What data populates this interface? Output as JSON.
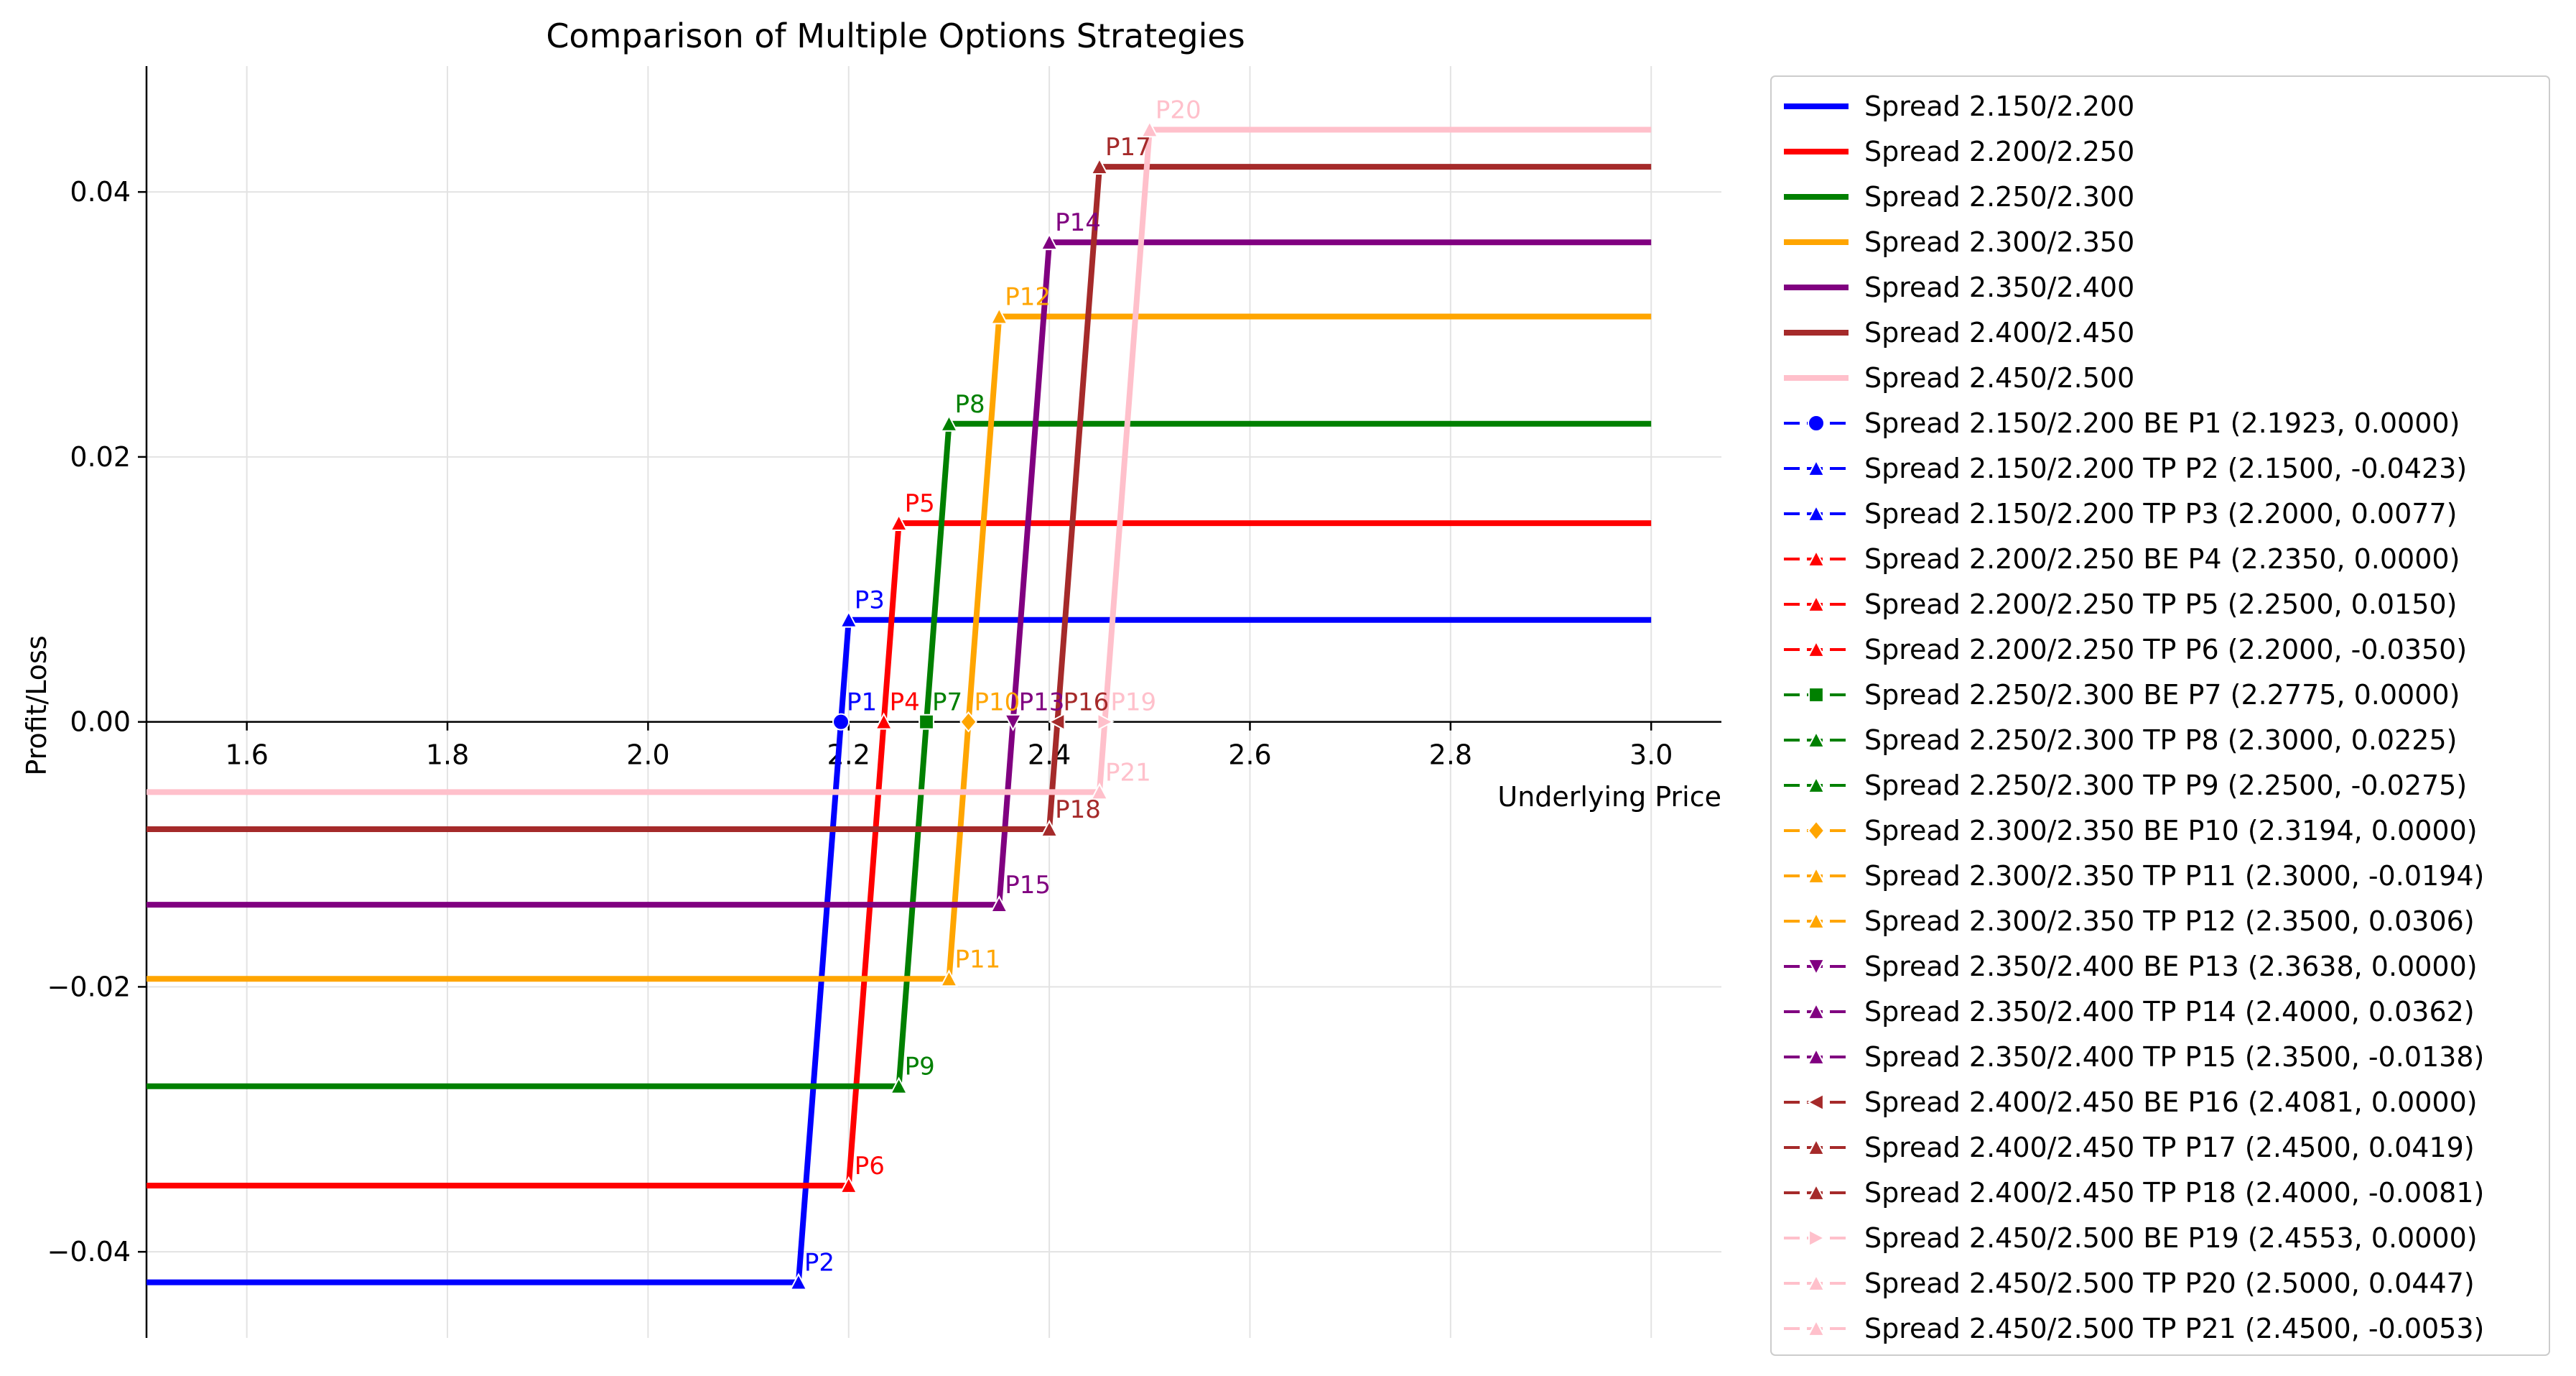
{
  "chart_data": {
    "type": "line",
    "title": "Comparison of Multiple Options Strategies",
    "xlabel": "Underlying Price",
    "ylabel": "Profit/Loss",
    "xlim": [
      1.5,
      3.07
    ],
    "ylim": [
      -0.0465,
      0.0495
    ],
    "xticks": [
      1.6,
      1.8,
      2.0,
      2.2,
      2.4,
      2.6,
      2.8,
      3.0
    ],
    "xtick_labels": [
      "1.6",
      "1.8",
      "2.0",
      "2.2",
      "2.4",
      "2.6",
      "2.8",
      "3.0"
    ],
    "yticks": [
      -0.04,
      -0.02,
      0.0,
      0.02,
      0.04
    ],
    "ytick_labels": [
      "−0.04",
      "−0.02",
      "0.00",
      "0.02",
      "0.04"
    ],
    "grid": true,
    "legend_position": "outside-right",
    "series": [
      {
        "name": "Spread 2.150/2.200",
        "color": "#0000ff",
        "x": [
          1.5,
          2.15,
          2.2,
          3.0
        ],
        "y": [
          -0.0423,
          -0.0423,
          0.0077,
          0.0077
        ]
      },
      {
        "name": "Spread 2.200/2.250",
        "color": "#ff0000",
        "x": [
          1.5,
          2.2,
          2.25,
          3.0
        ],
        "y": [
          -0.035,
          -0.035,
          0.015,
          0.015
        ]
      },
      {
        "name": "Spread 2.250/2.300",
        "color": "#008000",
        "x": [
          1.5,
          2.25,
          2.3,
          3.0
        ],
        "y": [
          -0.0275,
          -0.0275,
          0.0225,
          0.0225
        ]
      },
      {
        "name": "Spread 2.300/2.350",
        "color": "#ffa500",
        "x": [
          1.5,
          2.3,
          2.35,
          3.0
        ],
        "y": [
          -0.0194,
          -0.0194,
          0.0306,
          0.0306
        ]
      },
      {
        "name": "Spread 2.350/2.400",
        "color": "#800080",
        "x": [
          1.5,
          2.35,
          2.4,
          3.0
        ],
        "y": [
          -0.0138,
          -0.0138,
          0.0362,
          0.0362
        ]
      },
      {
        "name": "Spread 2.400/2.450",
        "color": "#a52a2a",
        "x": [
          1.5,
          2.4,
          2.45,
          3.0
        ],
        "y": [
          -0.0081,
          -0.0081,
          0.0419,
          0.0419
        ]
      },
      {
        "name": "Spread 2.450/2.500",
        "color": "#ffc0cb",
        "x": [
          1.5,
          2.45,
          2.5,
          3.0
        ],
        "y": [
          -0.0053,
          -0.0053,
          0.0447,
          0.0447
        ]
      }
    ],
    "points": [
      {
        "label": "P1",
        "x": 2.1923,
        "y": 0.0,
        "marker": "circle",
        "color": "#0000ff",
        "legend": "Spread 2.150/2.200 BE P1 (2.1923, 0.0000)"
      },
      {
        "label": "P2",
        "x": 2.15,
        "y": -0.0423,
        "marker": "triangle-up",
        "color": "#0000ff",
        "legend": "Spread 2.150/2.200 TP P2 (2.1500, -0.0423)"
      },
      {
        "label": "P3",
        "x": 2.2,
        "y": 0.0077,
        "marker": "triangle-up",
        "color": "#0000ff",
        "legend": "Spread 2.150/2.200 TP P3 (2.2000, 0.0077)"
      },
      {
        "label": "P4",
        "x": 2.235,
        "y": 0.0,
        "marker": "triangle-up",
        "color": "#ff0000",
        "legend": "Spread 2.200/2.250 BE P4 (2.2350, 0.0000)"
      },
      {
        "label": "P5",
        "x": 2.25,
        "y": 0.015,
        "marker": "triangle-up",
        "color": "#ff0000",
        "legend": "Spread 2.200/2.250 TP P5 (2.2500, 0.0150)"
      },
      {
        "label": "P6",
        "x": 2.2,
        "y": -0.035,
        "marker": "triangle-up",
        "color": "#ff0000",
        "legend": "Spread 2.200/2.250 TP P6 (2.2000, -0.0350)"
      },
      {
        "label": "P7",
        "x": 2.2775,
        "y": 0.0,
        "marker": "square",
        "color": "#008000",
        "legend": "Spread 2.250/2.300 BE P7 (2.2775, 0.0000)"
      },
      {
        "label": "P8",
        "x": 2.3,
        "y": 0.0225,
        "marker": "triangle-up",
        "color": "#008000",
        "legend": "Spread 2.250/2.300 TP P8 (2.3000, 0.0225)"
      },
      {
        "label": "P9",
        "x": 2.25,
        "y": -0.0275,
        "marker": "triangle-up",
        "color": "#008000",
        "legend": "Spread 2.250/2.300 TP P9 (2.2500, -0.0275)"
      },
      {
        "label": "P10",
        "x": 2.3194,
        "y": 0.0,
        "marker": "diamond",
        "color": "#ffa500",
        "legend": "Spread 2.300/2.350 BE P10 (2.3194, 0.0000)"
      },
      {
        "label": "P11",
        "x": 2.3,
        "y": -0.0194,
        "marker": "triangle-up",
        "color": "#ffa500",
        "legend": "Spread 2.300/2.350 TP P11 (2.3000, -0.0194)"
      },
      {
        "label": "P12",
        "x": 2.35,
        "y": 0.0306,
        "marker": "triangle-up",
        "color": "#ffa500",
        "legend": "Spread 2.300/2.350 TP P12 (2.3500, 0.0306)"
      },
      {
        "label": "P13",
        "x": 2.3638,
        "y": 0.0,
        "marker": "triangle-down",
        "color": "#800080",
        "legend": "Spread 2.350/2.400 BE P13 (2.3638, 0.0000)"
      },
      {
        "label": "P14",
        "x": 2.4,
        "y": 0.0362,
        "marker": "triangle-up",
        "color": "#800080",
        "legend": "Spread 2.350/2.400 TP P14 (2.4000, 0.0362)"
      },
      {
        "label": "P15",
        "x": 2.35,
        "y": -0.0138,
        "marker": "triangle-up",
        "color": "#800080",
        "legend": "Spread 2.350/2.400 TP P15 (2.3500, -0.0138)"
      },
      {
        "label": "P16",
        "x": 2.4081,
        "y": 0.0,
        "marker": "triangle-left",
        "color": "#a52a2a",
        "legend": "Spread 2.400/2.450 BE P16 (2.4081, 0.0000)"
      },
      {
        "label": "P17",
        "x": 2.45,
        "y": 0.0419,
        "marker": "triangle-up",
        "color": "#a52a2a",
        "legend": "Spread 2.400/2.450 TP P17 (2.4500, 0.0419)"
      },
      {
        "label": "P18",
        "x": 2.4,
        "y": -0.0081,
        "marker": "triangle-up",
        "color": "#a52a2a",
        "legend": "Spread 2.400/2.450 TP P18 (2.4000, -0.0081)"
      },
      {
        "label": "P19",
        "x": 2.4553,
        "y": 0.0,
        "marker": "triangle-right",
        "color": "#ffc0cb",
        "legend": "Spread 2.450/2.500 BE P19 (2.4553, 0.0000)"
      },
      {
        "label": "P20",
        "x": 2.5,
        "y": 0.0447,
        "marker": "triangle-up",
        "color": "#ffc0cb",
        "legend": "Spread 2.450/2.500 TP P20 (2.5000, 0.0447)"
      },
      {
        "label": "P21",
        "x": 2.45,
        "y": -0.0053,
        "marker": "triangle-up",
        "color": "#ffc0cb",
        "legend": "Spread 2.450/2.500 TP P21 (2.4500, -0.0053)"
      }
    ]
  }
}
